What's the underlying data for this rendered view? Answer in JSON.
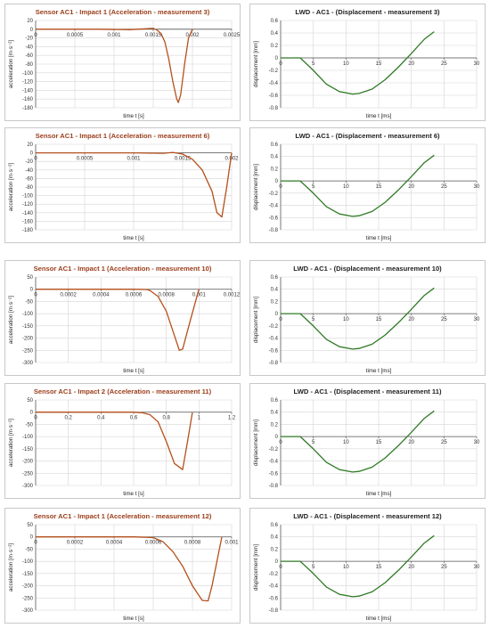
{
  "colors": {
    "acceleration": "#b5501c",
    "displacement": "#2f7a25",
    "acc_title": "#9b3d1a",
    "disp_title": "#222222",
    "grid": "#d6d6d6",
    "axis": "#555555"
  },
  "charts": [
    {
      "kind": "acc",
      "type": "line",
      "title": "Sensor AC1 - Impact 1 (Acceleration - measurement 3)",
      "xlabel": "time t [s]",
      "ylabel": "acceleration [m·s⁻²]",
      "xlim": [
        0,
        0.0025
      ],
      "ylim": [
        -180,
        20
      ],
      "x_ticks": [
        0.0005,
        0.001,
        0.0015,
        0.002,
        0.0025
      ],
      "x_tick_labels": [
        "0.0005",
        "0.001",
        "0.0015",
        "0.002",
        "0.0025"
      ],
      "y_ticks": [
        20,
        0,
        -20,
        -40,
        -60,
        -80,
        -100,
        -120,
        -140,
        -160,
        -180
      ],
      "y_tick_labels": [
        "20",
        "0",
        "-20",
        "-40",
        "-60",
        "-80",
        "-100",
        "-120",
        "-140",
        "-160",
        "-180"
      ],
      "x": [
        0,
        0.0004,
        0.0008,
        0.0012,
        0.0014,
        0.0015,
        0.00155,
        0.0016,
        0.00165,
        0.0017,
        0.00175,
        0.0018,
        0.00182,
        0.00185,
        0.0019,
        0.00195,
        0.002
      ],
      "y": [
        0,
        0,
        0,
        -1,
        1,
        2,
        -2,
        -10,
        -30,
        -70,
        -120,
        -160,
        -168,
        -150,
        -80,
        -20,
        0
      ]
    },
    {
      "kind": "disp",
      "type": "line",
      "title": "LWD - AC1 - (Displacement - measurement 3)",
      "xlabel": "time t [ms]",
      "ylabel": "displacement [mm]",
      "xlim": [
        0,
        30
      ],
      "ylim": [
        -0.8,
        0.6
      ],
      "x_ticks": [
        5,
        10,
        15,
        20,
        25,
        30
      ],
      "x_tick_labels": [
        "5",
        "10",
        "15",
        "20",
        "25",
        "30"
      ],
      "y_ticks": [
        0.6,
        0.4,
        0.2,
        0,
        -0.2,
        -0.4,
        -0.6,
        -0.8
      ],
      "y_tick_labels": [
        "0.6",
        "0.4",
        "0.2",
        "0",
        "-0.2",
        "-0.4",
        "-0.6",
        "-0.8"
      ],
      "x": [
        0,
        3,
        5,
        7,
        9,
        11,
        12,
        14,
        16,
        18,
        20,
        22,
        23.5
      ],
      "y": [
        0,
        0,
        -0.2,
        -0.42,
        -0.54,
        -0.58,
        -0.57,
        -0.5,
        -0.35,
        -0.15,
        0.07,
        0.3,
        0.42
      ]
    },
    {
      "kind": "acc",
      "type": "line",
      "title": "Sensor AC1 - Impact 1 (Acceleration - measurement 6)",
      "xlabel": "time t [s]",
      "ylabel": "acceleration [m·s⁻²]",
      "xlim": [
        0,
        0.002
      ],
      "ylim": [
        -180,
        20
      ],
      "x_ticks": [
        0.0005,
        0.001,
        0.0015,
        0.002
      ],
      "x_tick_labels": [
        "0.0005",
        "0.001",
        "0.0015",
        "0.002"
      ],
      "y_ticks": [
        20,
        0,
        -20,
        -40,
        -60,
        -80,
        -100,
        -120,
        -140,
        -160,
        -180
      ],
      "y_tick_labels": [
        "20",
        "0",
        "-20",
        "-40",
        "-60",
        "-80",
        "-100",
        "-120",
        "-140",
        "-160",
        "-180"
      ],
      "x": [
        0,
        0.0005,
        0.001,
        0.0013,
        0.0014,
        0.0015,
        0.0016,
        0.0017,
        0.0018,
        0.00185,
        0.0019,
        0.00195,
        0.002
      ],
      "y": [
        0,
        0,
        0,
        -1,
        1,
        -3,
        -15,
        -40,
        -90,
        -140,
        -150,
        -80,
        0
      ]
    },
    {
      "kind": "disp",
      "type": "line",
      "title": "LWD - AC1 - (Displacement - measurement 6)",
      "xlabel": "time t [ms]",
      "ylabel": "displacement [mm]",
      "xlim": [
        0,
        30
      ],
      "ylim": [
        -0.8,
        0.6
      ],
      "x_ticks": [
        5,
        10,
        15,
        20,
        25,
        30
      ],
      "x_tick_labels": [
        "5",
        "10",
        "15",
        "20",
        "25",
        "30"
      ],
      "y_ticks": [
        0.6,
        0.4,
        0.2,
        0,
        -0.2,
        -0.4,
        -0.6,
        -0.8
      ],
      "y_tick_labels": [
        "0.6",
        "0.4",
        "0.2",
        "0",
        "-0.2",
        "-0.4",
        "-0.6",
        "-0.8"
      ],
      "x": [
        0,
        3,
        5,
        7,
        9,
        11,
        12,
        14,
        16,
        18,
        20,
        22,
        23.5
      ],
      "y": [
        0,
        0,
        -0.2,
        -0.42,
        -0.54,
        -0.58,
        -0.57,
        -0.5,
        -0.35,
        -0.15,
        0.07,
        0.3,
        0.42
      ]
    },
    {
      "kind": "acc",
      "type": "line",
      "title": "Sensor AC1 - Impact 1 (Acceleration - measurement 10)",
      "xlabel": "time t [s]",
      "ylabel": "acceleration [m·s⁻²]",
      "xlim": [
        0,
        0.0012
      ],
      "ylim": [
        -300,
        50
      ],
      "x_ticks": [
        0.0002,
        0.0004,
        0.0006,
        0.0008,
        0.001,
        0.0012
      ],
      "x_tick_labels": [
        "0.0002",
        "0.0004",
        "0.0006",
        "0.0008",
        "0.001",
        "0.0012"
      ],
      "y_ticks": [
        50,
        0,
        -50,
        -100,
        -150,
        -200,
        -250,
        -300
      ],
      "y_tick_labels": [
        "50",
        "0",
        "-50",
        "-100",
        "-150",
        "-200",
        "-250",
        "-300"
      ],
      "x": [
        0,
        0.0004,
        0.0006,
        0.00068,
        0.0007,
        0.00075,
        0.0008,
        0.00085,
        0.00088,
        0.0009,
        0.00095,
        0.001
      ],
      "y": [
        0,
        0,
        0,
        -1,
        -5,
        -30,
        -90,
        -190,
        -250,
        -245,
        -120,
        0
      ]
    },
    {
      "kind": "disp",
      "type": "line",
      "title": "LWD - AC1 - (Displacement - measurement 10)",
      "xlabel": "time t [ms]",
      "ylabel": "displacement [mm]",
      "xlim": [
        0,
        30
      ],
      "ylim": [
        -0.8,
        0.6
      ],
      "x_ticks": [
        5,
        10,
        15,
        20,
        25,
        30
      ],
      "x_tick_labels": [
        "5",
        "10",
        "15",
        "20",
        "25",
        "30"
      ],
      "y_ticks": [
        0.6,
        0.4,
        0.2,
        0,
        -0.2,
        -0.4,
        -0.6,
        -0.8
      ],
      "y_tick_labels": [
        "0.6",
        "0.4",
        "0.2",
        "0",
        "-0.2",
        "-0.4",
        "-0.6",
        "-0.8"
      ],
      "x": [
        0,
        3,
        5,
        7,
        9,
        11,
        12,
        14,
        16,
        18,
        20,
        22,
        23.5
      ],
      "y": [
        0,
        0,
        -0.2,
        -0.42,
        -0.54,
        -0.58,
        -0.57,
        -0.5,
        -0.35,
        -0.15,
        0.07,
        0.3,
        0.42
      ]
    },
    {
      "kind": "acc",
      "type": "line",
      "title": "Sensor AC1 - Impact 2 (Acceleration - measurement 11)",
      "xlabel": "time t [s]",
      "ylabel": "acceleration [m·s⁻²]",
      "xlim": [
        0,
        1.2
      ],
      "ylim": [
        -300,
        50
      ],
      "x_ticks": [
        0.2,
        0.4,
        0.6,
        0.8,
        1,
        1.2
      ],
      "x_tick_labels": [
        "0.2",
        "0.4",
        "0.6",
        "0.8",
        "1",
        "1.2"
      ],
      "y_ticks": [
        50,
        0,
        -50,
        -100,
        -150,
        -200,
        -250,
        -300
      ],
      "y_tick_labels": [
        "50",
        "0",
        "-50",
        "-100",
        "-150",
        "-200",
        "-250",
        "-300"
      ],
      "x": [
        0,
        0.2,
        0.4,
        0.6,
        0.65,
        0.7,
        0.75,
        0.8,
        0.85,
        0.9,
        0.93,
        0.96
      ],
      "y": [
        0,
        0,
        0,
        0,
        -2,
        -10,
        -40,
        -120,
        -210,
        -235,
        -120,
        0
      ]
    },
    {
      "kind": "disp",
      "type": "line",
      "title": "LWD - AC1 - (Displacement - measurement 11)",
      "xlabel": "time t [ms]",
      "ylabel": "displacement [mm]",
      "xlim": [
        0,
        30
      ],
      "ylim": [
        -0.8,
        0.6
      ],
      "x_ticks": [
        5,
        10,
        15,
        20,
        25,
        30
      ],
      "x_tick_labels": [
        "5",
        "10",
        "15",
        "20",
        "25",
        "30"
      ],
      "y_ticks": [
        0.6,
        0.4,
        0.2,
        0,
        -0.2,
        -0.4,
        -0.6,
        -0.8
      ],
      "y_tick_labels": [
        "0.6",
        "0.4",
        "0.2",
        "0",
        "-0.2",
        "-0.4",
        "-0.6",
        "-0.8"
      ],
      "x": [
        0,
        3,
        5,
        7,
        9,
        11,
        12,
        14,
        16,
        18,
        20,
        22,
        23.5
      ],
      "y": [
        0,
        0,
        -0.2,
        -0.42,
        -0.54,
        -0.58,
        -0.57,
        -0.5,
        -0.35,
        -0.15,
        0.07,
        0.3,
        0.42
      ]
    },
    {
      "kind": "acc",
      "type": "line",
      "title": "Sensor AC1 - Impact 1 (Acceleration - measurement 12)",
      "xlabel": "time t [s]",
      "ylabel": "acceleration [m·s⁻²]",
      "xlim": [
        0,
        0.001
      ],
      "ylim": [
        -300,
        50
      ],
      "x_ticks": [
        0.0002,
        0.0004,
        0.0006,
        0.0008,
        0.001
      ],
      "x_tick_labels": [
        "0.0002",
        "0.0004",
        "0.0006",
        "0.0008",
        "0.001"
      ],
      "y_ticks": [
        50,
        0,
        -50,
        -100,
        -150,
        -200,
        -250,
        -300
      ],
      "y_tick_labels": [
        "50",
        "0",
        "-50",
        "-100",
        "-150",
        "-200",
        "-250",
        "-300"
      ],
      "x": [
        0,
        0.0002,
        0.0004,
        0.0005,
        0.0006,
        0.00065,
        0.0007,
        0.00075,
        0.0008,
        0.00085,
        0.00088,
        0.0009,
        0.00095
      ],
      "y": [
        0,
        0,
        0,
        0,
        -3,
        -20,
        -60,
        -120,
        -200,
        -260,
        -262,
        -200,
        0
      ]
    },
    {
      "kind": "disp",
      "type": "line",
      "title": "LWD - AC1 - (Displacement - measurement 12)",
      "xlabel": "time t [ms]",
      "ylabel": "displacement [mm]",
      "xlim": [
        0,
        30
      ],
      "ylim": [
        -0.8,
        0.6
      ],
      "x_ticks": [
        5,
        10,
        15,
        20,
        25,
        30
      ],
      "x_tick_labels": [
        "5",
        "10",
        "15",
        "20",
        "25",
        "30"
      ],
      "y_ticks": [
        0.6,
        0.4,
        0.2,
        0,
        -0.2,
        -0.4,
        -0.6,
        -0.8
      ],
      "y_tick_labels": [
        "0.6",
        "0.4",
        "0.2",
        "0",
        "-0.2",
        "-0.4",
        "-0.6",
        "-0.8"
      ],
      "x": [
        0,
        3,
        5,
        7,
        9,
        11,
        12,
        14,
        16,
        18,
        20,
        22,
        23.5
      ],
      "y": [
        0,
        0,
        -0.2,
        -0.42,
        -0.54,
        -0.58,
        -0.57,
        -0.5,
        -0.35,
        -0.15,
        0.07,
        0.3,
        0.42
      ]
    }
  ]
}
